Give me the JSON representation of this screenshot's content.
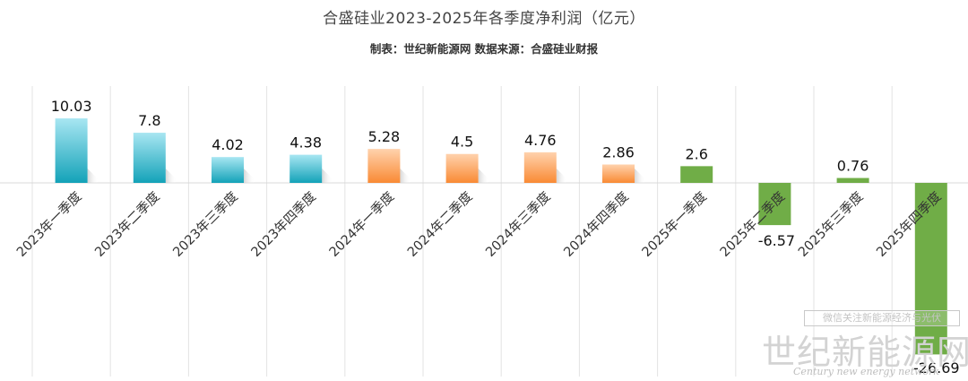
{
  "chart_data": {
    "type": "bar",
    "title": "合盛硅业2023-2025年各季度净利润（亿元）",
    "subtitle": "制表：世纪新能源网  数据来源：合盛硅业财报",
    "categories": [
      "2023年一季度",
      "2023年二季度",
      "2023年三季度",
      "2023年四季度",
      "2024年一季度",
      "2024年二季度",
      "2024年三季度",
      "2024年四季度",
      "2025年一季度",
      "2025年二季度",
      "2025年三季度",
      "2025年四季度"
    ],
    "values": [
      10.03,
      7.8,
      4.02,
      4.38,
      5.28,
      4.5,
      4.76,
      2.86,
      2.6,
      -6.57,
      0.76,
      -26.69
    ],
    "value_labels": [
      "10.03",
      "7.8",
      "4.02",
      "4.38",
      "5.28",
      "4.5",
      "4.76",
      "2.86",
      "2.6",
      "-6.57",
      "0.76",
      "-26.69"
    ],
    "bar_groups": [
      "2023",
      "2023",
      "2023",
      "2023",
      "2024",
      "2024",
      "2024",
      "2024",
      "2025",
      "2025",
      "2025",
      "2025"
    ],
    "colors": {
      "2023": [
        "#a8e6f2",
        "#13a2b8"
      ],
      "2024": [
        "#ffd2ad",
        "#f98a34"
      ],
      "2025": [
        "#70ad47",
        "#70ad47"
      ]
    },
    "grid": "vertical"
  },
  "watermark": {
    "line1": "微信关注新能源经济与光伏",
    "brand": "世纪新能源网",
    "english": "Century new energy network"
  }
}
